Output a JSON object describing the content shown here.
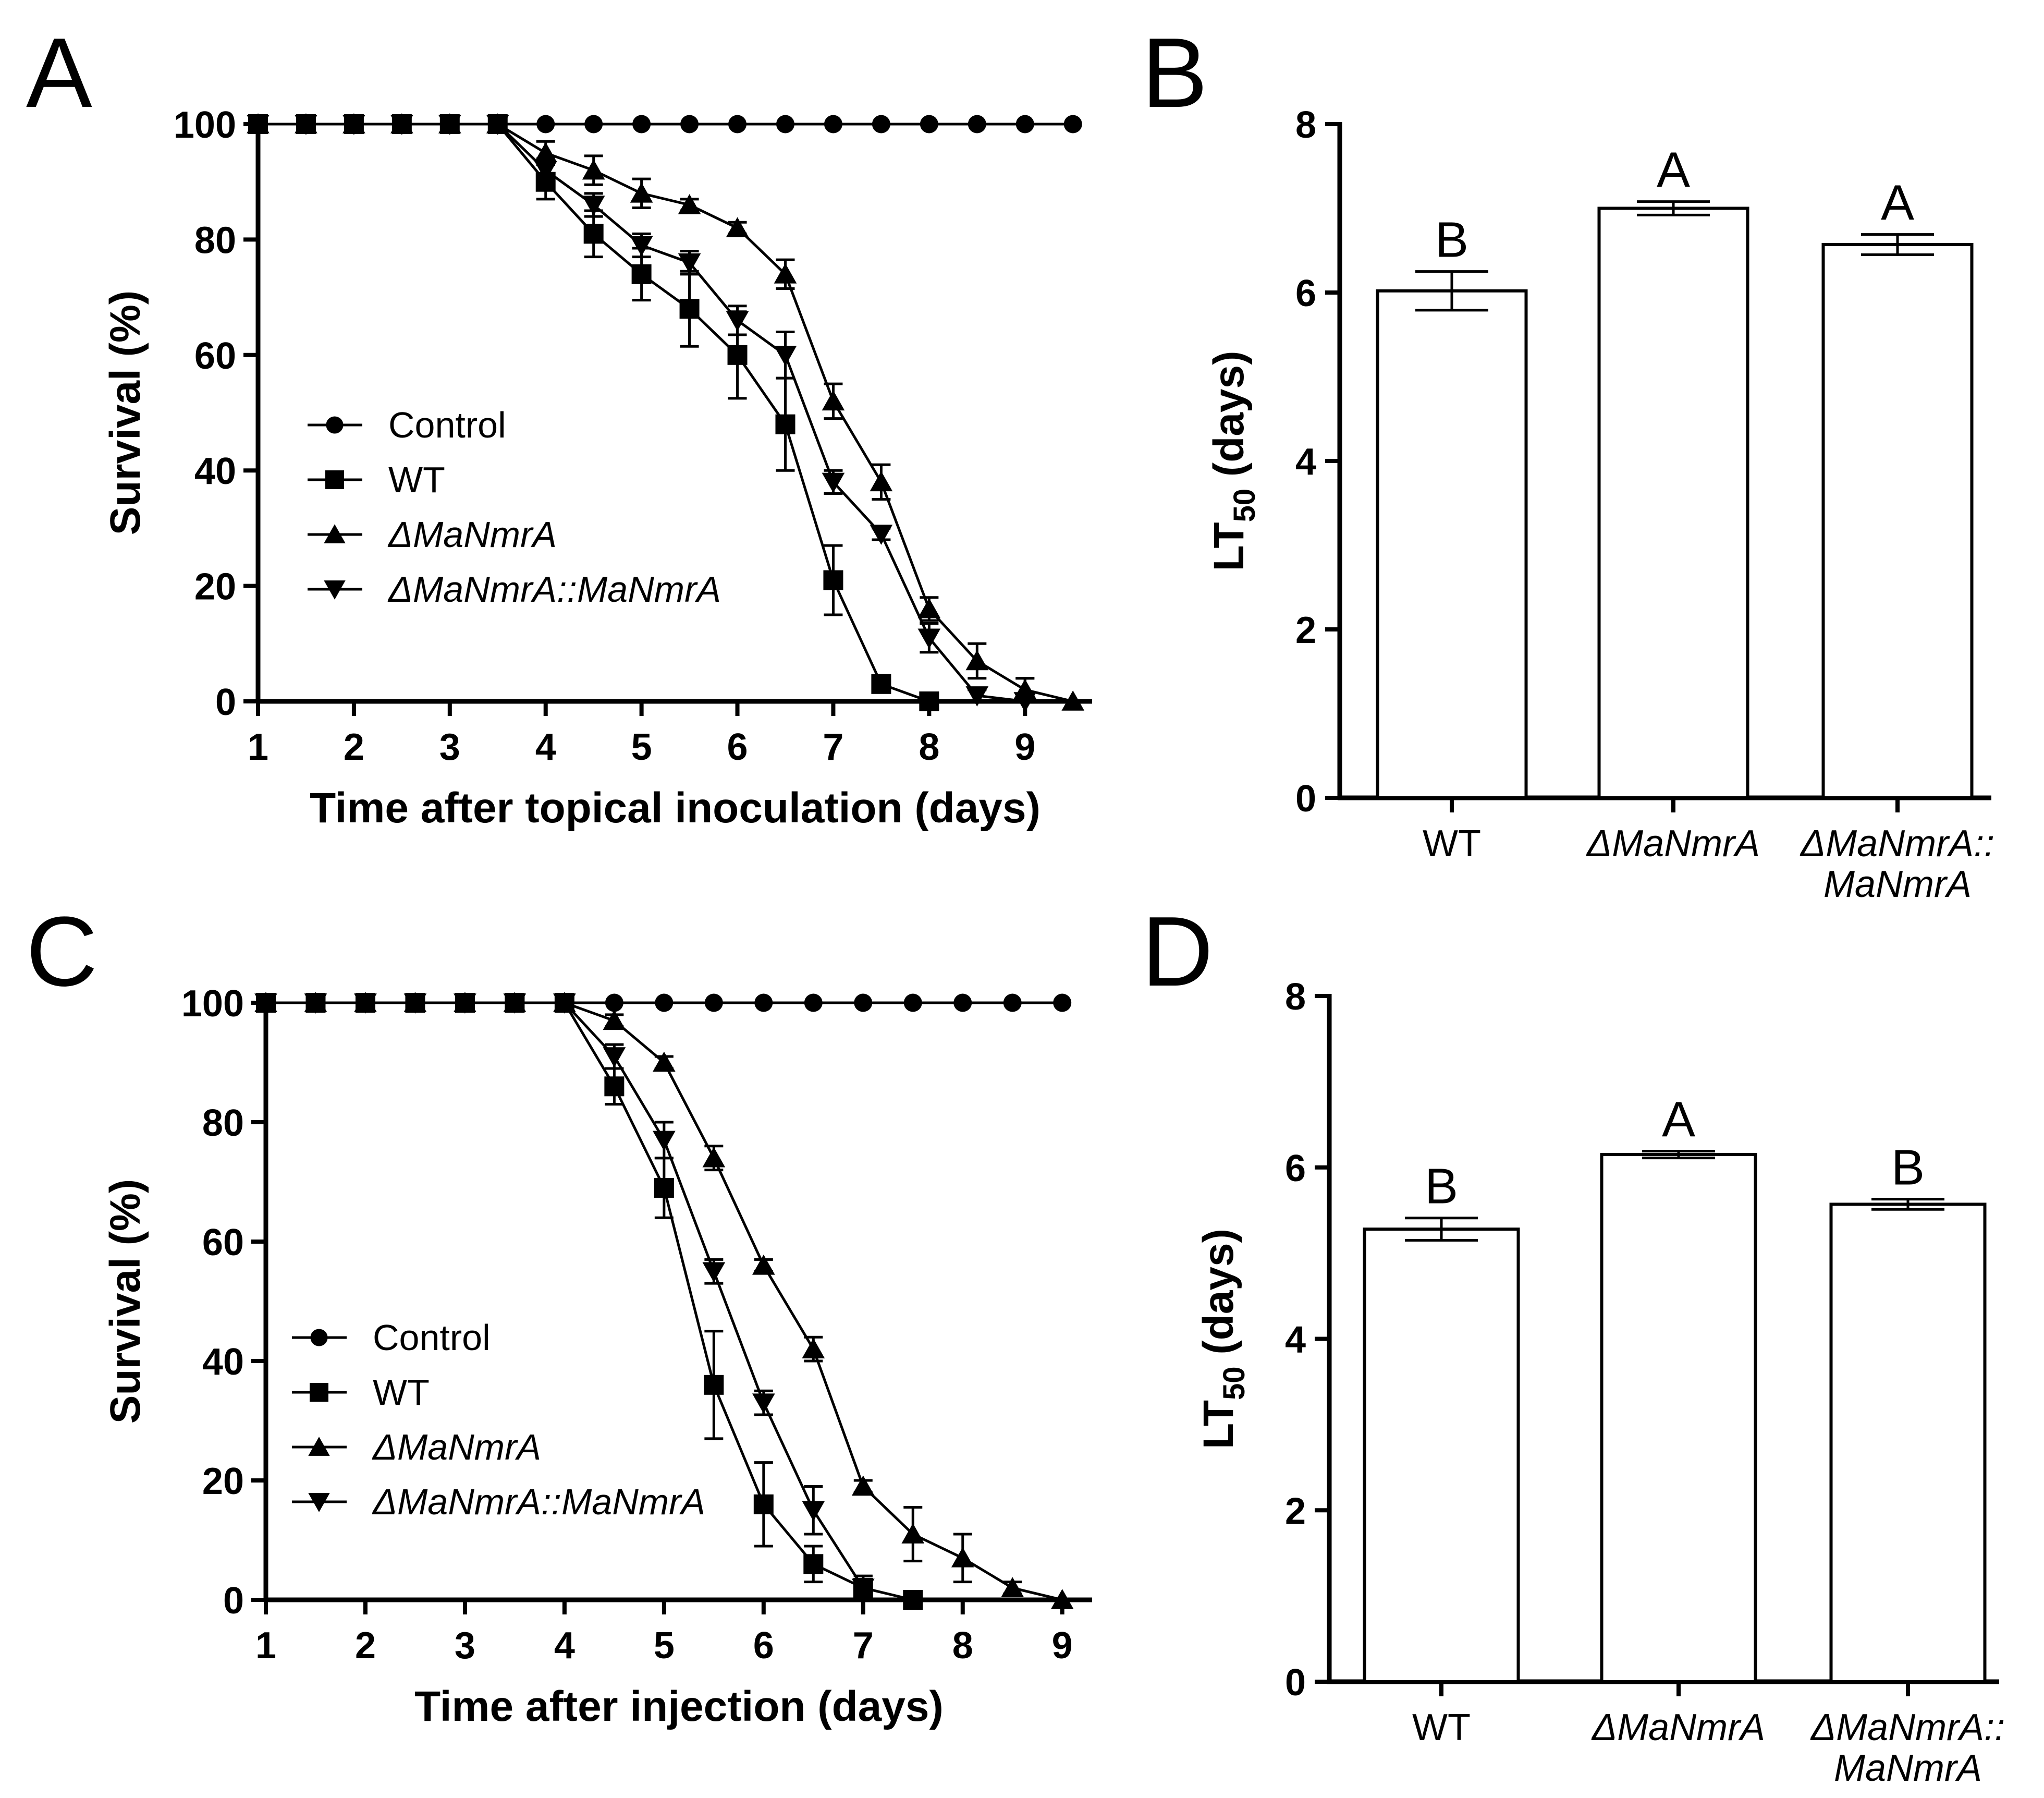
{
  "panels": [
    {
      "letter": "A"
    },
    {
      "letter": "B"
    },
    {
      "letter": "C"
    },
    {
      "letter": "D"
    }
  ],
  "chart_data": [
    {
      "type": "line",
      "panel": "A",
      "xlabel": "Time after topical inoculation (days)",
      "ylabel": "Survival (%)",
      "xlim": [
        1,
        9.7
      ],
      "ylim": [
        0,
        100
      ],
      "xticks": [
        1,
        2,
        3,
        4,
        5,
        6,
        7,
        8,
        9
      ],
      "yticks": [
        0,
        20,
        40,
        60,
        80,
        100
      ],
      "legend_position": "center-left",
      "series": [
        {
          "name": "Control",
          "marker": "circle",
          "x": [
            1,
            1.5,
            2,
            2.5,
            3,
            3.5,
            4,
            4.5,
            5,
            5.5,
            6,
            6.5,
            7,
            7.5,
            8,
            8.5,
            9,
            9.5
          ],
          "y": [
            100,
            100,
            100,
            100,
            100,
            100,
            100,
            100,
            100,
            100,
            100,
            100,
            100,
            100,
            100,
            100,
            100,
            100
          ],
          "err": [
            0,
            0,
            0,
            0,
            0,
            0,
            0,
            0,
            0,
            0,
            0,
            0,
            0,
            0,
            0,
            0,
            0,
            0
          ]
        },
        {
          "name": "WT",
          "marker": "square",
          "x": [
            1,
            1.5,
            2,
            2.5,
            3,
            3.5,
            4,
            4.5,
            5,
            5.5,
            6,
            6.5,
            7,
            7.5,
            8
          ],
          "y": [
            100,
            100,
            100,
            100,
            100,
            100,
            90,
            81,
            74,
            68,
            60,
            48,
            21,
            3,
            0
          ],
          "err": [
            0,
            0,
            0,
            0,
            0,
            0,
            3,
            4,
            4.5,
            6.5,
            7.5,
            8,
            6,
            1,
            0
          ]
        },
        {
          "name": "ΔMaNmrA",
          "marker": "triangle-up",
          "x": [
            1,
            1.5,
            2,
            2.5,
            3,
            3.5,
            4,
            4.5,
            5,
            5.5,
            6,
            6.5,
            7,
            7.5,
            8,
            8.5,
            9,
            9.5
          ],
          "y": [
            100,
            100,
            100,
            100,
            100,
            100,
            95,
            92,
            88,
            86,
            82,
            74,
            52,
            38,
            16,
            7,
            2,
            0
          ],
          "err": [
            0,
            0,
            0,
            0,
            0,
            0,
            2,
            2.5,
            2.5,
            1,
            1,
            2.5,
            3,
            3,
            2,
            3,
            2,
            0
          ]
        },
        {
          "name": "ΔMaNmrA::MaNmrA",
          "marker": "triangle-down",
          "x": [
            1,
            1.5,
            2,
            2.5,
            3,
            3.5,
            4,
            4.5,
            5,
            5.5,
            6,
            6.5,
            7,
            7.5,
            8,
            8.5,
            9
          ],
          "y": [
            100,
            100,
            100,
            100,
            100,
            100,
            92,
            86,
            79,
            76,
            66,
            60,
            38,
            29,
            11,
            1,
            0
          ],
          "err": [
            0,
            0,
            0,
            0,
            0,
            0,
            2,
            2,
            2,
            2,
            2.5,
            4,
            2,
            1,
            2.5,
            1,
            4
          ]
        }
      ]
    },
    {
      "type": "bar",
      "panel": "B",
      "ylabel_main": "LT",
      "ylabel_sub": "50",
      "ylabel_tail": " (days)",
      "ylim": [
        0,
        8
      ],
      "yticks": [
        0,
        2,
        4,
        6,
        8
      ],
      "categories": [
        {
          "line1": "WT",
          "line2": "",
          "italic": false
        },
        {
          "line1": "ΔMaNmrA",
          "line2": "",
          "italic": true
        },
        {
          "line1": "ΔMaNmrA::",
          "line2": "MaNmrA",
          "italic": true
        }
      ],
      "values": [
        6.02,
        7.0,
        6.57
      ],
      "errors": [
        0.23,
        0.08,
        0.12
      ],
      "significance": [
        "B",
        "A",
        "A"
      ]
    },
    {
      "type": "line",
      "panel": "C",
      "xlabel": "Time after injection (days)",
      "ylabel": "Survival (%)",
      "xlim": [
        1,
        9.3
      ],
      "ylim": [
        0,
        100
      ],
      "xticks": [
        1,
        2,
        3,
        4,
        5,
        6,
        7,
        8,
        9
      ],
      "yticks": [
        0,
        20,
        40,
        60,
        80,
        100
      ],
      "legend_position": "bottom-left",
      "series": [
        {
          "name": "Control",
          "marker": "circle",
          "x": [
            1,
            1.5,
            2,
            2.5,
            3,
            3.5,
            4,
            4.5,
            5,
            5.5,
            6,
            6.5,
            7,
            7.5,
            8,
            8.5,
            9
          ],
          "y": [
            100,
            100,
            100,
            100,
            100,
            100,
            100,
            100,
            100,
            100,
            100,
            100,
            100,
            100,
            100,
            100,
            100
          ],
          "err": [
            0,
            0,
            0,
            0,
            0,
            0,
            0,
            0,
            0,
            0,
            0,
            0,
            0,
            0,
            0,
            0,
            0
          ]
        },
        {
          "name": "WT",
          "marker": "square",
          "x": [
            1,
            1.5,
            2,
            2.5,
            3,
            3.5,
            4,
            4.5,
            5,
            5.5,
            6,
            6.5,
            7,
            7.5
          ],
          "y": [
            100,
            100,
            100,
            100,
            100,
            100,
            100,
            86,
            69,
            36,
            16,
            6,
            2,
            0
          ],
          "err": [
            0,
            0,
            0,
            0,
            0,
            0,
            0,
            3,
            5,
            9,
            7,
            3,
            2,
            0
          ]
        },
        {
          "name": "ΔMaNmrA",
          "marker": "triangle-up",
          "x": [
            1,
            1.5,
            2,
            2.5,
            3,
            3.5,
            4,
            4.5,
            5,
            5.5,
            6,
            6.5,
            7,
            7.5,
            8,
            8.5,
            9
          ],
          "y": [
            100,
            100,
            100,
            100,
            100,
            100,
            100,
            97,
            90,
            74,
            56,
            42,
            19,
            11,
            7,
            2,
            0
          ],
          "err": [
            0,
            0,
            0,
            0,
            0,
            0,
            0,
            1,
            1,
            2,
            1,
            2,
            1,
            4.5,
            4,
            1,
            0
          ]
        },
        {
          "name": "ΔMaNmrA::MaNmrA",
          "marker": "triangle-down",
          "x": [
            1,
            1.5,
            2,
            2.5,
            3,
            3.5,
            4,
            4.5,
            5,
            5.5,
            6,
            6.5,
            7
          ],
          "y": [
            100,
            100,
            100,
            100,
            100,
            100,
            100,
            91,
            77,
            55,
            33,
            15,
            2
          ],
          "err": [
            0,
            0,
            0,
            0,
            0,
            0,
            0,
            2,
            3,
            2,
            2,
            4,
            2
          ]
        }
      ]
    },
    {
      "type": "bar",
      "panel": "D",
      "ylabel_main": "LT",
      "ylabel_sub": "50",
      "ylabel_tail": " (days)",
      "ylim": [
        0,
        8
      ],
      "yticks": [
        0,
        2,
        4,
        6,
        8
      ],
      "categories": [
        {
          "line1": "WT",
          "line2": "",
          "italic": false
        },
        {
          "line1": "ΔMaNmrA",
          "line2": "",
          "italic": true
        },
        {
          "line1": "ΔMaNmrA::",
          "line2": "MaNmrA",
          "italic": true
        }
      ],
      "values": [
        5.28,
        6.15,
        5.57
      ],
      "errors": [
        0.13,
        0.04,
        0.06
      ],
      "significance": [
        "B",
        "A",
        "B"
      ]
    }
  ]
}
